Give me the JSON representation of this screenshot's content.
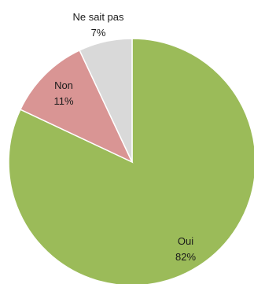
{
  "chart_data": {
    "type": "pie",
    "start": "top",
    "direction": "clockwise",
    "slices": [
      {
        "label": "Oui",
        "value": 82,
        "value_label": "82%",
        "color": "#9bbb59"
      },
      {
        "label": "Non",
        "value": 11,
        "value_label": "11%",
        "color": "#d99594"
      },
      {
        "label": "Ne sait pas",
        "value": 7,
        "value_label": "7%",
        "color": "#d9d9d9"
      }
    ]
  }
}
